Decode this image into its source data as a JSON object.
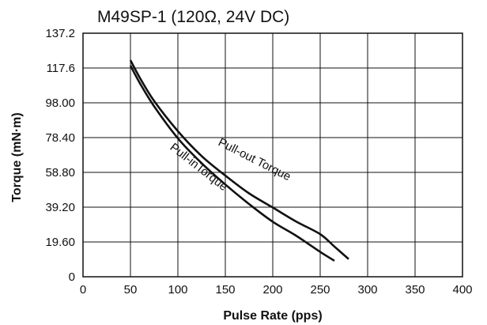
{
  "chart_data": {
    "type": "line",
    "title": "M49SP-1 (120Ω, 24V DC)",
    "xlabel": "Pulse Rate (pps)",
    "ylabel": "Torque (mN·m)",
    "xlim": [
      0,
      400
    ],
    "ylim": [
      0,
      137.2
    ],
    "x_ticks": [
      "0",
      "50",
      "100",
      "150",
      "200",
      "250",
      "300",
      "350",
      "400"
    ],
    "y_ticks": [
      "0",
      "19.60",
      "39.20",
      "58.80",
      "78.40",
      "98.00",
      "117.6",
      "137.2"
    ],
    "grid": true,
    "series": [
      {
        "name": "Pull-out Torque",
        "x": [
          50,
          60,
          75,
          100,
          125,
          150,
          175,
          200,
          225,
          250,
          265,
          280
        ],
        "y": [
          122,
          112,
          99,
          82,
          68,
          57,
          47,
          39,
          31,
          24,
          17,
          10
        ]
      },
      {
        "name": "Pull-inTorque",
        "x": [
          50,
          60,
          75,
          100,
          125,
          150,
          175,
          200,
          225,
          250,
          265
        ],
        "y": [
          119,
          109,
          96,
          78,
          64,
          52,
          41,
          31,
          23,
          14,
          9
        ]
      }
    ]
  }
}
